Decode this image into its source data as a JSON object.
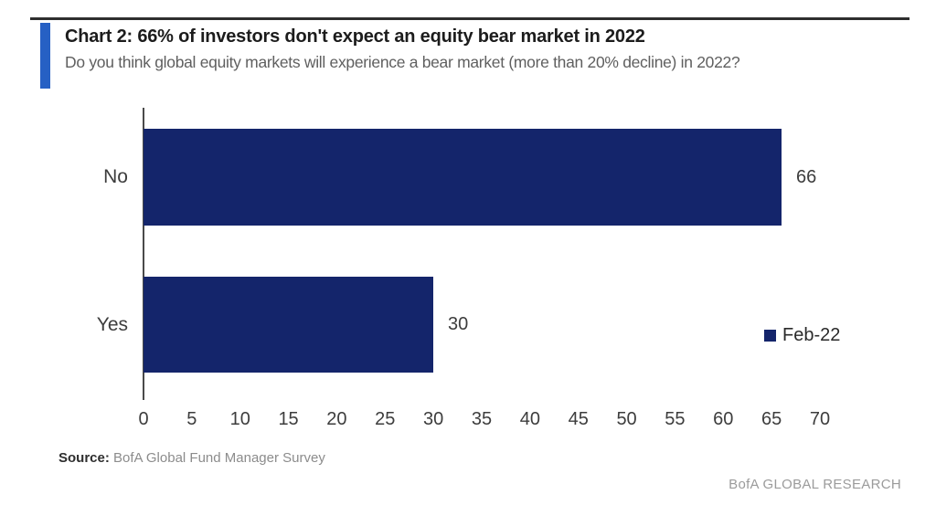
{
  "chart_data": {
    "type": "bar",
    "orientation": "horizontal",
    "title": "Chart 2: 66% of investors don't expect an equity bear market in 2022",
    "subtitle": "Do you think global equity markets will experience a bear market (more than 20% decline) in 2022?",
    "categories": [
      "No",
      "Yes"
    ],
    "series": [
      {
        "name": "Feb-22",
        "values": [
          66,
          30
        ]
      }
    ],
    "data_labels": [
      "66",
      "30"
    ],
    "x_ticks": [
      0,
      5,
      10,
      15,
      20,
      25,
      30,
      35,
      40,
      45,
      50,
      55,
      60,
      65,
      70
    ],
    "xlim": [
      0,
      70
    ],
    "xlabel": "",
    "ylabel": "",
    "grid": false,
    "legend": {
      "position": "middle-right",
      "entries": [
        "Feb-22"
      ]
    },
    "bar_color": "#14256b"
  },
  "footer": {
    "source_label": "Source:",
    "source_text": "BofA Global Fund Manager Survey",
    "branding": "BofA GLOBAL RESEARCH"
  },
  "colors": {
    "accent_bar": "#2660c4",
    "bar": "#14256b",
    "top_rule": "#2e2e2e"
  }
}
